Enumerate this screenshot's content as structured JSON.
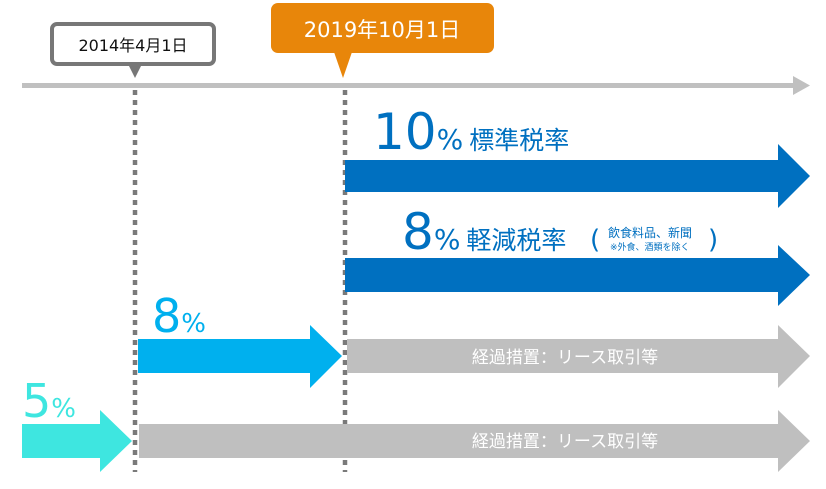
{
  "dates": {
    "start": "2014年4月1日",
    "change": "2019年10月1日"
  },
  "rates": {
    "standard": {
      "num": "10",
      "pct": "%",
      "label": "標準税率"
    },
    "reduced": {
      "num": "8",
      "pct": "%",
      "label": "軽減税率",
      "open": "(",
      "note1": "飲食料品、新聞",
      "note2": "※外食、酒類を除く",
      "close": ")"
    },
    "old8": {
      "num": "8",
      "pct": "%"
    },
    "old5": {
      "num": "5",
      "pct": "%"
    }
  },
  "transition": {
    "row1": "経過措置：リース取引等",
    "row2": "経過措置：リース取引等"
  },
  "colors": {
    "timeline": "#c0c0c0",
    "orange": "#e8860a",
    "dark_blue": "#0070c0",
    "light_blue": "#00b0ee",
    "teal": "#3ee6e0",
    "gray_arrow": "#bfbfbf",
    "dots": "#7a7a7a"
  }
}
